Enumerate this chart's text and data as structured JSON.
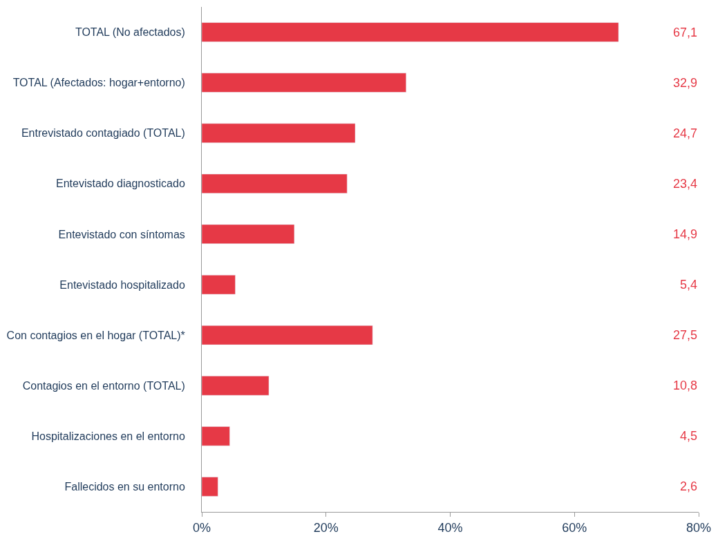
{
  "chart_data": {
    "type": "bar",
    "orientation": "horizontal",
    "categories": [
      "TOTAL (No afectados)",
      "TOTAL (Afectados: hogar+entorno)",
      "Entrevistado contagiado (TOTAL)",
      "Entevistado diagnosticado",
      "Entevistado con síntomas",
      "Entevistado hospitalizado",
      "Con contagios en el hogar (TOTAL)*",
      "Contagios en el entorno (TOTAL)",
      "Hospitalizaciones en el entorno",
      "Fallecidos en su entorno"
    ],
    "values": [
      67.1,
      32.9,
      24.7,
      23.4,
      14.9,
      5.4,
      27.5,
      10.8,
      4.5,
      2.6
    ],
    "value_labels": [
      "67,1",
      "32,9",
      "24,7",
      "23,4",
      "14,9",
      "5,4",
      "27,5",
      "10,8",
      "4,5",
      "2,6"
    ],
    "color": "#e63946",
    "xlim": [
      0,
      80
    ],
    "xticks": [
      {
        "value": 0,
        "label": "0%"
      },
      {
        "value": 20,
        "label": "20%"
      },
      {
        "value": 40,
        "label": "40%"
      },
      {
        "value": 60,
        "label": "60%"
      },
      {
        "value": 80,
        "label": "80%"
      }
    ],
    "legend": false
  }
}
